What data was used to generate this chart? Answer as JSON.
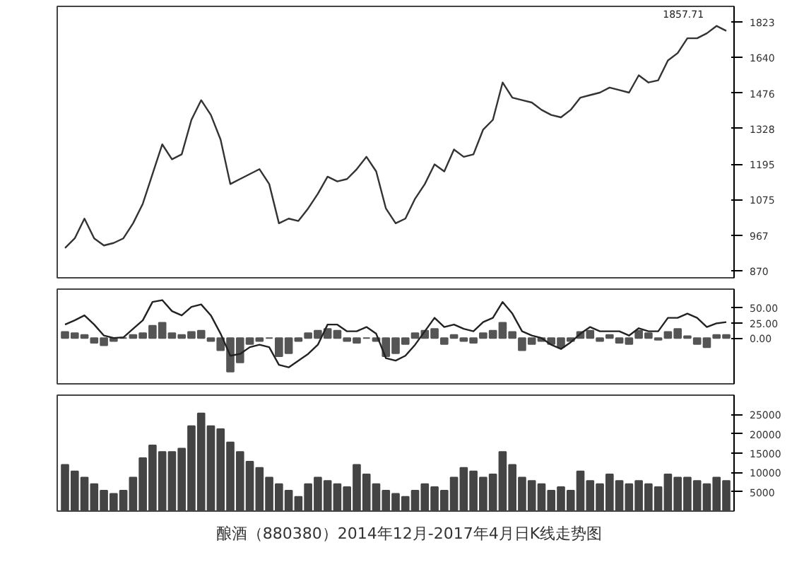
{
  "chart_data": [
    {
      "type": "line",
      "log": "y",
      "grid": false,
      "tick_labels": "y",
      "annotations": [
        "1857.71"
      ],
      "categories": [
        null,
        null,
        null,
        null,
        null,
        null,
        null,
        null,
        null,
        null,
        null,
        null,
        null,
        null,
        null,
        null,
        null,
        null,
        null,
        null,
        null,
        null,
        null,
        null,
        null,
        null,
        null,
        null,
        null,
        null,
        null,
        null,
        null,
        null,
        null,
        null,
        null,
        null,
        null,
        null,
        null,
        null,
        null,
        null,
        null,
        null,
        null,
        null,
        null,
        null,
        null,
        null,
        null,
        null,
        null,
        null,
        null,
        null,
        null,
        null,
        null,
        null,
        null,
        null,
        null,
        null,
        null,
        null,
        null
      ],
      "ylim": [
        852,
        1910
      ],
      "yticks": [
        870,
        967,
        1075,
        1195,
        1328,
        1476,
        1640,
        1823
      ],
      "series": [
        {
          "type": "line",
          "color": "#333333",
          "values": [
            931,
            958,
            1016,
            958,
            938,
            945,
            958,
            1002,
            1062,
            1160,
            1267,
            1212,
            1230,
            1363,
            1445,
            1383,
            1285,
            1126,
            1143,
            1160,
            1177,
            1126,
            1002,
            1016,
            1009,
            1047,
            1094,
            1151,
            1135,
            1143,
            1177,
            1221,
            1169,
            1047,
            1002,
            1016,
            1078,
            1126,
            1194,
            1169,
            1248,
            1221,
            1230,
            1324,
            1363,
            1523,
            1456,
            1445,
            1435,
            1404,
            1383,
            1373,
            1404,
            1456,
            1467,
            1478,
            1500,
            1489,
            1478,
            1556,
            1523,
            1533,
            1626,
            1662,
            1737,
            1737,
            1763,
            1802,
            1776
          ]
        }
      ]
    },
    {
      "type": "bar",
      "grid": false,
      "tick_labels": "y",
      "categories": [
        null,
        null,
        null,
        null,
        null,
        null,
        null,
        null,
        null,
        null,
        null,
        null,
        null,
        null,
        null,
        null,
        null,
        null,
        null,
        null,
        null,
        null,
        null,
        null,
        null,
        null,
        null,
        null,
        null,
        null,
        null,
        null,
        null,
        null,
        null,
        null,
        null,
        null,
        null,
        null,
        null,
        null,
        null,
        null,
        null,
        null,
        null,
        null,
        null,
        null,
        null,
        null,
        null,
        null,
        null,
        null,
        null,
        null,
        null,
        null,
        null,
        null,
        null,
        null,
        null,
        null,
        null,
        null,
        null
      ],
      "ylim": [
        -75,
        80
      ],
      "yticks": [
        {
          "value": 0,
          "label": "0.00"
        },
        {
          "value": 25,
          "label": "25.00"
        },
        {
          "value": 50,
          "label": "50.00"
        }
      ],
      "series": [
        {
          "type": "bar",
          "color": "#555555",
          "values": [
            10,
            8,
            5,
            -8,
            -12,
            -5,
            0,
            5,
            8,
            20,
            25,
            8,
            5,
            10,
            12,
            -5,
            -20,
            -55,
            -40,
            -10,
            -5,
            0,
            -30,
            -25,
            -5,
            8,
            12,
            15,
            12,
            -5,
            -8,
            0,
            -5,
            -30,
            -25,
            -10,
            8,
            12,
            15,
            -10,
            5,
            -5,
            -8,
            8,
            12,
            25,
            10,
            -20,
            -10,
            -5,
            -10,
            -15,
            -5,
            10,
            12,
            -5,
            5,
            -8,
            -10,
            12,
            8,
            -3,
            10,
            15,
            3,
            -10,
            -15,
            5,
            5
          ]
        },
        {
          "type": "line",
          "color": "#222222",
          "values": [
            22,
            29,
            37,
            22,
            4,
            0,
            1,
            15,
            29,
            59,
            62,
            44,
            37,
            51,
            55,
            37,
            7,
            -29,
            -26,
            -15,
            -11,
            -15,
            -44,
            -48,
            -37,
            -26,
            -11,
            22,
            22,
            11,
            11,
            18,
            7,
            -33,
            -37,
            -29,
            -11,
            11,
            33,
            18,
            22,
            15,
            11,
            26,
            33,
            59,
            40,
            11,
            4,
            0,
            -11,
            -18,
            -7,
            7,
            18,
            11,
            11,
            11,
            4,
            16,
            11,
            11,
            33,
            33,
            40,
            33,
            18,
            24,
            26
          ]
        }
      ]
    },
    {
      "type": "bar",
      "grid": false,
      "tick_labels": "y",
      "color": "#444444",
      "annotations": [
        "酿酒（880380）2014年12月-2017年4月日K线走势图"
      ],
      "categories": [
        null,
        null,
        null,
        null,
        null,
        null,
        null,
        null,
        null,
        null,
        null,
        null,
        null,
        null,
        null,
        null,
        null,
        null,
        null,
        null,
        null,
        null,
        null,
        null,
        null,
        null,
        null,
        null,
        null,
        null,
        null,
        null,
        null,
        null,
        null,
        null,
        null,
        null,
        null,
        null,
        null,
        null,
        null,
        null,
        null,
        null,
        null,
        null,
        null,
        null,
        null,
        null,
        null,
        null,
        null,
        null,
        null,
        null,
        null,
        null,
        null,
        null,
        null,
        null,
        null,
        null,
        null,
        null,
        null
      ],
      "ylim": [
        0,
        30000
      ],
      "yticks": [
        5000,
        10000,
        15000,
        20000,
        25000
      ],
      "values": [
        12000,
        10300,
        8700,
        7000,
        5300,
        4500,
        5300,
        8700,
        13700,
        17000,
        15300,
        15300,
        16200,
        22000,
        25300,
        22000,
        21200,
        17800,
        15300,
        12800,
        11200,
        8700,
        7000,
        5300,
        3700,
        7000,
        8700,
        7800,
        7000,
        6200,
        12000,
        9500,
        7000,
        5300,
        4500,
        3700,
        5300,
        7000,
        6200,
        5300,
        8700,
        11200,
        10300,
        8700,
        9500,
        15300,
        12000,
        8700,
        7800,
        7000,
        5300,
        6200,
        5300,
        10300,
        7800,
        7000,
        9500,
        7800,
        7000,
        7800,
        7000,
        6200,
        9500,
        8700,
        8700,
        7800,
        7000,
        8700,
        7800
      ]
    }
  ]
}
